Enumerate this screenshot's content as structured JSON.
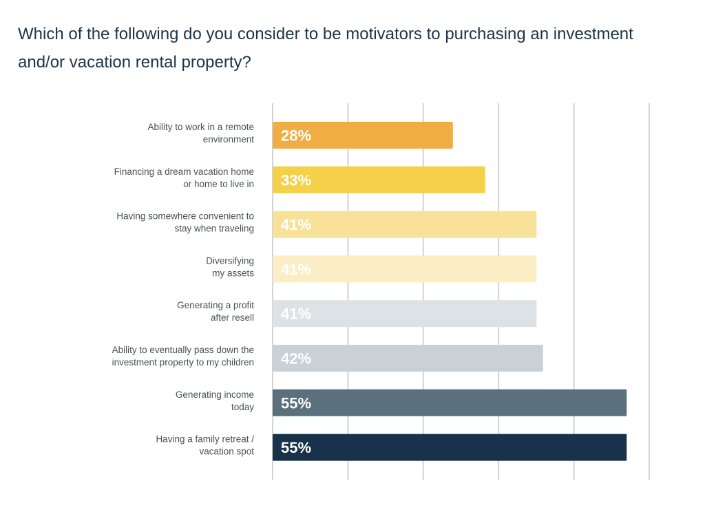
{
  "chart_data": {
    "type": "bar",
    "orientation": "horizontal",
    "title": "Which of the following do you consider to be motivators to purchasing an investment and/or vacation rental property?",
    "categories": [
      "Ability to work in a remote environment",
      "Financing a dream vacation home or home to live in",
      "Having somewhere convenient to stay when traveling",
      "Diversifying my assets",
      "Generating a profit after resell",
      "Ability to eventually pass down the investment property to my children",
      "Generating income today",
      "Having a family retreat / vacation spot"
    ],
    "category_lines": [
      [
        "Ability to work in a remote",
        "environment"
      ],
      [
        "Financing a dream vacation home",
        "or home to live in"
      ],
      [
        "Having somewhere convenient to",
        "stay when traveling"
      ],
      [
        "Diversifying",
        "my assets"
      ],
      [
        "Generating a profit",
        "after resell"
      ],
      [
        "Ability to eventually pass down the",
        "investment property to my children"
      ],
      [
        "Generating income",
        "today"
      ],
      [
        "Having a family retreat /",
        "vacation spot"
      ]
    ],
    "values": [
      28,
      33,
      41,
      41,
      41,
      42,
      55,
      55
    ],
    "value_labels": [
      "28%",
      "33%",
      "41%",
      "41%",
      "41%",
      "42%",
      "55%",
      "55%"
    ],
    "unit": "%",
    "xlim": [
      0,
      75
    ],
    "grid": true,
    "legend": "none",
    "colors": {
      "bars": [
        "#f0ad44",
        "#f5d049",
        "#f8e29a",
        "#fbedc4",
        "#dde2e6",
        "#c9d0d6",
        "#5a707c",
        "#17324a"
      ],
      "value_text": [
        "#ffffff",
        "#ffffff",
        "#ffffff",
        "#ffffff",
        "#ffffff",
        "#ffffff",
        "#ffffff",
        "#ffffff"
      ],
      "gridline": "#d3d3d3",
      "label_text": "#4a4f55",
      "title_text": "#1e3446"
    }
  }
}
